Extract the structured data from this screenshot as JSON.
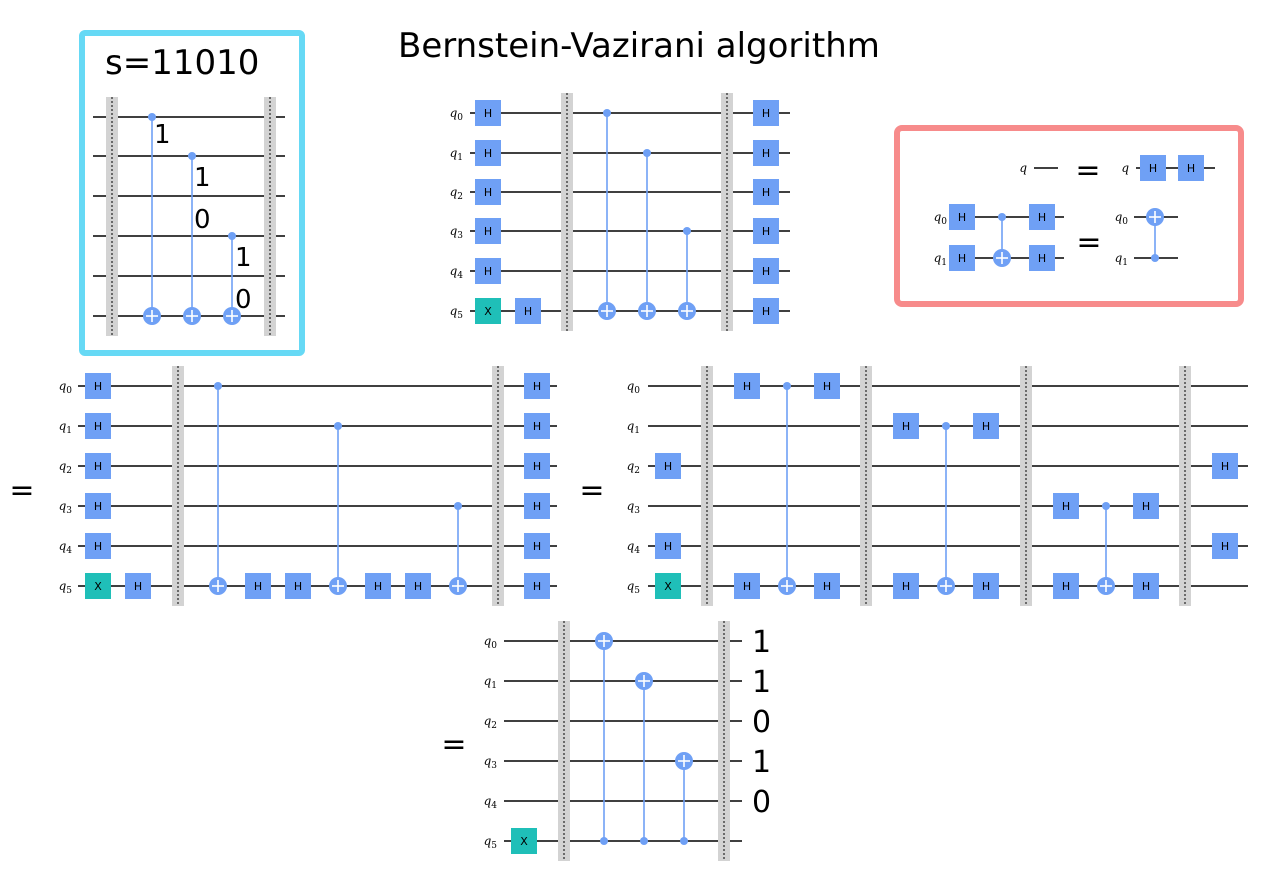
{
  "title": "Bernstein-Vazirani algorithm",
  "secret": {
    "label": "s=11010",
    "bits": [
      "1",
      "1",
      "0",
      "1",
      "0"
    ]
  },
  "qubit_labels": [
    "q0",
    "q1",
    "q2",
    "q3",
    "q4",
    "q5"
  ],
  "gates": {
    "hadamard": "H",
    "not": "X"
  },
  "equals_symbol": "=",
  "identities": {
    "single_qubit_label": "q",
    "two_qubit_labels": [
      "q0",
      "q1"
    ]
  },
  "output_bits": [
    "1",
    "1",
    "0",
    "1",
    "0"
  ],
  "colors": {
    "hadamard_gate": "#6fa0f5",
    "x_gate": "#1fbfb8",
    "secret_box_border": "#66d9f5",
    "identity_box_border": "#f78b8b",
    "barrier": "#d3d3d3"
  }
}
